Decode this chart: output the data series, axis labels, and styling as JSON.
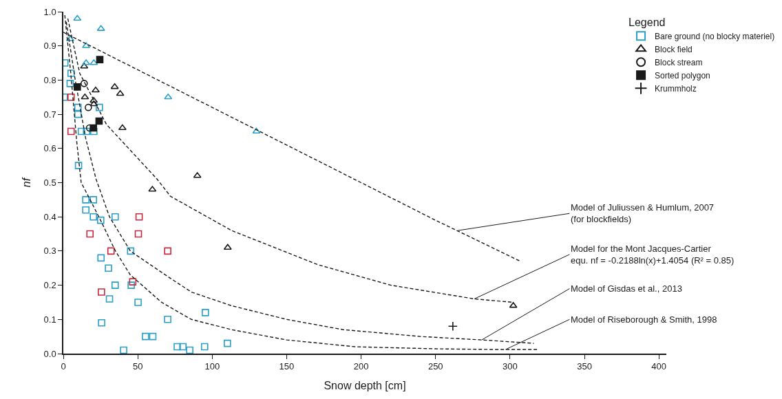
{
  "chart_data": {
    "type": "scatter",
    "xlabel": "Snow depth [cm]",
    "ylabel": "nf",
    "legend_title": "Legend",
    "xlim": [
      0,
      405
    ],
    "ylim": [
      0,
      1.0
    ],
    "xticks": [
      0,
      50,
      100,
      150,
      200,
      250,
      300,
      350,
      400
    ],
    "yticks": [
      {
        "value": 0,
        "label": "0.0"
      },
      {
        "value": 0.1,
        "label": "0.1"
      },
      {
        "value": 0.2,
        "label": "0.2"
      },
      {
        "value": 0.3,
        "label": "0.3"
      },
      {
        "value": 0.4,
        "label": "0.4"
      },
      {
        "value": 0.5,
        "label": "0.5"
      },
      {
        "value": 0.6,
        "label": "0.6"
      },
      {
        "value": 0.7,
        "label": "0.7"
      },
      {
        "value": 0.8,
        "label": "0.8"
      },
      {
        "value": 0.9,
        "label": "0.9"
      },
      {
        "value": 1.0,
        "label": "1.0"
      }
    ],
    "legend": "top right",
    "series": [
      {
        "name": "Bare ground (no blocky materiel)",
        "marker": "square",
        "color": "#2a9fc9",
        "x": [
          1.0,
          5.2,
          4.6,
          0.6,
          9.8,
          24.2,
          9.8,
          12.1,
          15.6,
          20.5,
          10.2,
          15.1,
          20.2,
          15.1,
          20.2,
          25.1,
          34.8,
          45.2,
          25.3,
          30.3,
          34.8,
          45.6,
          31.0,
          50.2,
          70.1,
          25.7,
          55.2,
          60.1,
          40.5,
          76.5,
          80.3,
          84.9,
          94.9,
          110.2,
          95.4
        ],
        "values": [
          0.85,
          0.82,
          0.79,
          0.75,
          0.72,
          0.72,
          0.7,
          0.65,
          0.65,
          0.65,
          0.55,
          0.45,
          0.45,
          0.42,
          0.4,
          0.39,
          0.4,
          0.3,
          0.28,
          0.25,
          0.2,
          0.2,
          0.16,
          0.15,
          0.1,
          0.09,
          0.05,
          0.05,
          0.01,
          0.02,
          0.02,
          0.01,
          0.02,
          0.03,
          0.12
        ]
      },
      {
        "marker": "square",
        "color": "#c8283c",
        "x": [
          5.2,
          5.2,
          50.9,
          17.9,
          50.4,
          32.0,
          70.1,
          46.6,
          25.6
        ],
        "values": [
          0.75,
          0.65,
          0.4,
          0.35,
          0.35,
          0.3,
          0.3,
          0.21,
          0.18
        ]
      },
      {
        "name": "Block field",
        "marker": "triangle",
        "color": "#1a1a1a",
        "x": [
          14.0,
          21.7,
          34.5,
          38.2,
          14.5,
          20.4,
          20.5,
          39.7,
          90.0,
          59.8,
          110.4,
          302.2
        ],
        "values": [
          0.84,
          0.77,
          0.78,
          0.76,
          0.75,
          0.74,
          0.73,
          0.66,
          0.52,
          0.48,
          0.31,
          0.14
        ]
      },
      {
        "marker": "triangle",
        "color": "#2a9fc9",
        "x": [
          9.4,
          25.3,
          4.6,
          15.3,
          15.3,
          20.5,
          70.4,
          129.7
        ],
        "values": [
          0.98,
          0.95,
          0.92,
          0.9,
          0.85,
          0.85,
          0.75,
          0.65
        ]
      },
      {
        "name": "Block stream",
        "marker": "circle",
        "color": "#1a1a1a",
        "x": [
          14.0,
          16.8,
          17.6
        ],
        "values": [
          0.79,
          0.72,
          0.66
        ]
      },
      {
        "name": "Sorted polygon",
        "marker": "square-filled",
        "color": "#1a1a1a",
        "x": [
          24.5,
          9.4,
          24.0,
          20.2
        ],
        "values": [
          0.86,
          0.78,
          0.68,
          0.66
        ]
      },
      {
        "name": "Krummholz",
        "marker": "cross",
        "color": "#1a1a1a",
        "x": [
          261.6
        ],
        "values": [
          0.08
        ]
      },
      {
        "type": "line",
        "line_style": "dashed",
        "color": "#1a1a1a",
        "x": [
          0,
          50,
          100,
          150,
          200,
          250,
          307
        ],
        "values": [
          0.94,
          0.83,
          0.72,
          0.61,
          0.5,
          0.39,
          0.27
        ]
      },
      {
        "type": "line",
        "line_style": "dashed",
        "color": "#1a1a1a",
        "x": [
          3,
          11,
          29,
          63,
          72,
          113,
          171,
          220,
          276,
          302
        ],
        "values": [
          0.98,
          0.82,
          0.67,
          0.51,
          0.46,
          0.36,
          0.26,
          0.2,
          0.16,
          0.15
        ]
      },
      {
        "type": "line",
        "line_style": "dashed",
        "color": "#1a1a1a",
        "x": [
          2,
          8,
          15,
          22,
          31,
          45,
          72,
          86,
          113,
          150,
          188,
          240,
          281,
          316
        ],
        "values": [
          0.97,
          0.8,
          0.63,
          0.51,
          0.4,
          0.3,
          0.22,
          0.18,
          0.14,
          0.1,
          0.07,
          0.05,
          0.04,
          0.03
        ]
      },
      {
        "type": "line",
        "line_style": "dashed",
        "color": "#1a1a1a",
        "x": [
          1,
          5,
          9,
          12,
          18,
          25,
          35,
          45,
          66,
          86,
          113,
          150,
          196,
          250,
          290,
          319
        ],
        "values": [
          0.99,
          0.82,
          0.62,
          0.5,
          0.45,
          0.39,
          0.3,
          0.23,
          0.15,
          0.1,
          0.07,
          0.04,
          0.02,
          0.014,
          0.012,
          0.012
        ]
      }
    ],
    "annotations": [
      {
        "text": "Model of Juliussen & Humlum, 2007\n(for blockfields)",
        "x": 265,
        "y": 0.36
      },
      {
        "text": "Model for the Mont Jacques-Cartier\nequ. nf = -0.2188ln(x)+1.4054 (R² = 0.85)",
        "x": 276,
        "y": 0.16
      },
      {
        "text": "Model of Gisdas et al., 2013",
        "x": 281,
        "y": 0.04
      },
      {
        "text": "Model of Riseborough & Smith, 1998",
        "x": 297,
        "y": 0.012
      }
    ]
  }
}
